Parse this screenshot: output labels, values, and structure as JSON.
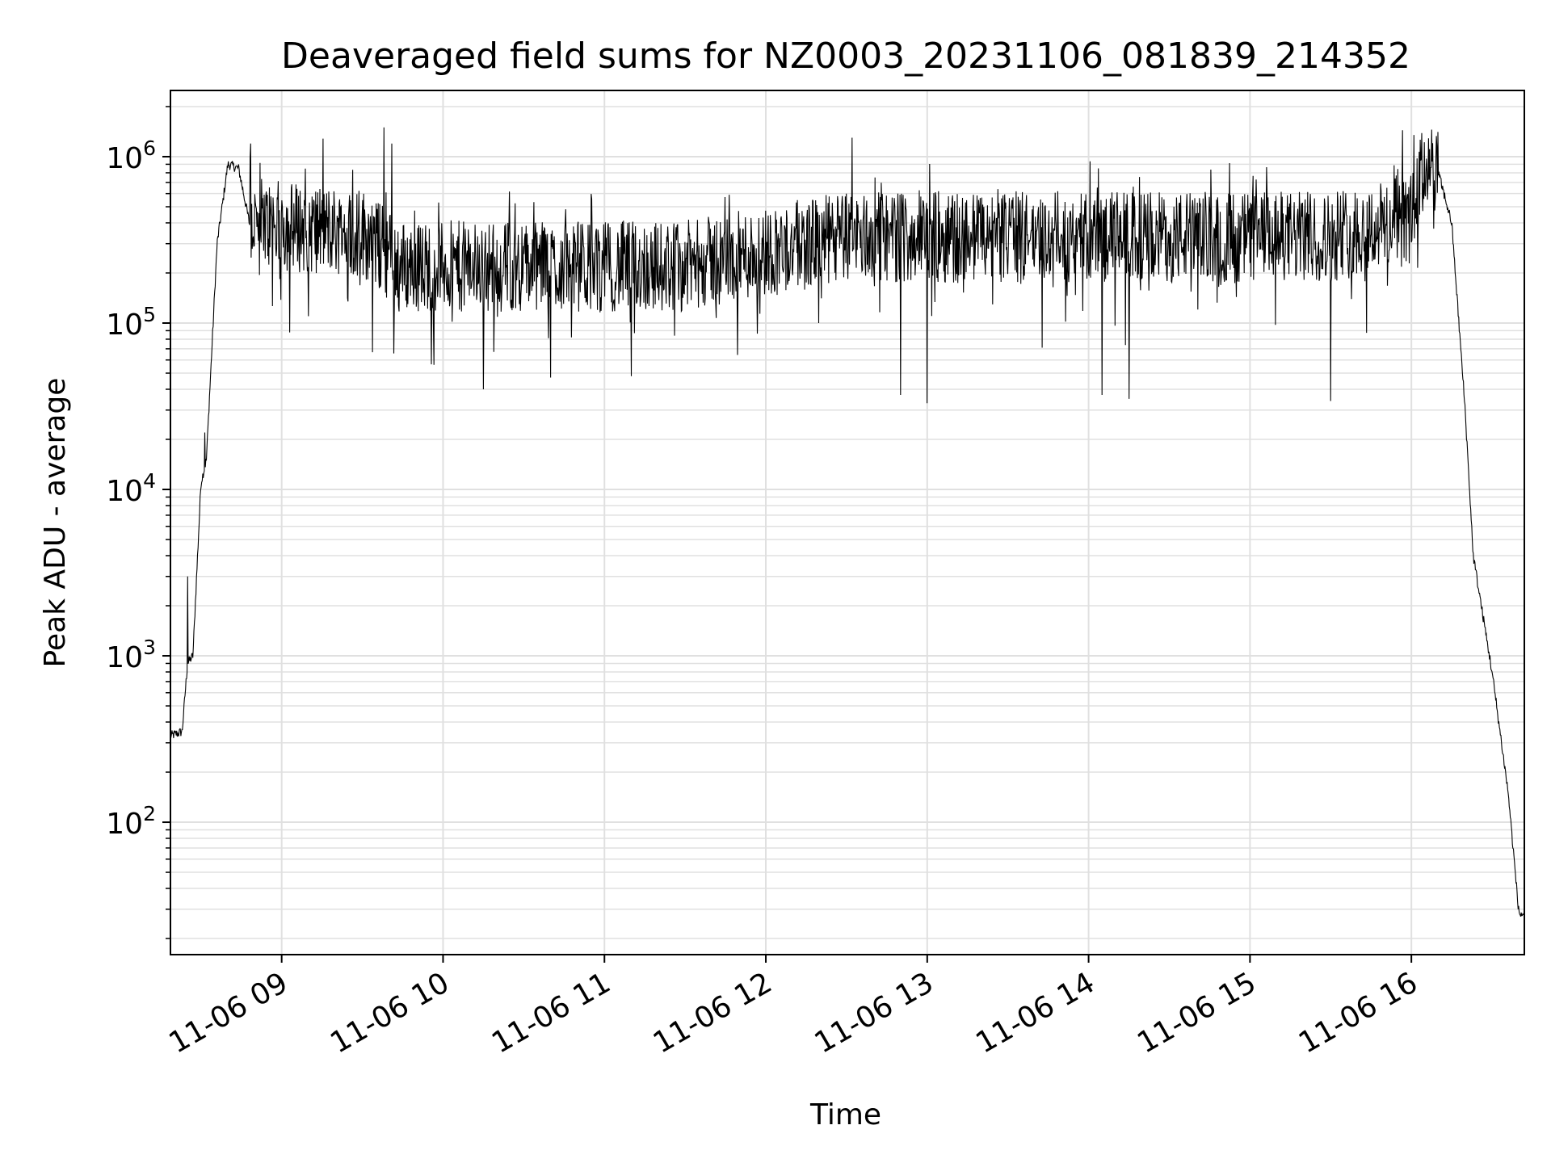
{
  "chart_data": {
    "type": "line",
    "title": "Deaveraged field sums for NZ0003_20231106_081839_214352",
    "xlabel": "Time",
    "ylabel": "Peak ADU - average",
    "yscale": "log",
    "ylim": [
      16,
      2500000
    ],
    "xlim": [
      "2023-11-06 08:18:39",
      "2023-11-06 16:42:00"
    ],
    "grid": true,
    "line_color": "#000000",
    "grid_color": "#e0e0e0",
    "x_ticks": [
      "11-06 09",
      "11-06 10",
      "11-06 11",
      "11-06 12",
      "11-06 13",
      "11-06 14",
      "11-06 15",
      "11-06 16"
    ],
    "x_tick_times": [
      "2023-11-06 09:00",
      "2023-11-06 10:00",
      "2023-11-06 11:00",
      "2023-11-06 12:00",
      "2023-11-06 13:00",
      "2023-11-06 14:00",
      "2023-11-06 15:00",
      "2023-11-06 16:00"
    ],
    "y_ticks": [
      {
        "value": 100,
        "base": "10",
        "exp": "2"
      },
      {
        "value": 1000,
        "base": "10",
        "exp": "3"
      },
      {
        "value": 10000,
        "base": "10",
        "exp": "4"
      },
      {
        "value": 100000,
        "base": "10",
        "exp": "5"
      },
      {
        "value": 1000000,
        "base": "10",
        "exp": "6"
      }
    ],
    "series": [
      {
        "envelope": [
          {
            "t": "2023-11-06 08:18:39",
            "y": 330
          },
          {
            "t": "2023-11-06 08:23:00",
            "y": 350
          },
          {
            "t": "2023-11-06 08:25:00",
            "y": 900
          },
          {
            "t": "2023-11-06 08:27:00",
            "y": 1000
          },
          {
            "t": "2023-11-06 08:30:00",
            "y": 11000
          },
          {
            "t": "2023-11-06 08:32:00",
            "y": 15000
          },
          {
            "t": "2023-11-06 08:36:00",
            "y": 300000
          },
          {
            "t": "2023-11-06 08:40:00",
            "y": 900000
          },
          {
            "t": "2023-11-06 08:44:00",
            "y": 850000
          },
          {
            "t": "2023-11-06 08:48:00",
            "y": 400000
          },
          {
            "t": "2023-11-06 09:30:00",
            "y": 350000
          },
          {
            "t": "2023-11-06 09:45:00",
            "y": 220000
          },
          {
            "t": "2023-11-06 11:30:00",
            "y": 220000
          },
          {
            "t": "2023-11-06 12:30:00",
            "y": 330000
          },
          {
            "t": "2023-11-06 15:30:00",
            "y": 330000
          },
          {
            "t": "2023-11-06 16:00:00",
            "y": 420000
          },
          {
            "t": "2023-11-06 16:05:00",
            "y": 900000
          },
          {
            "t": "2023-11-06 16:10:00",
            "y": 800000
          },
          {
            "t": "2023-11-06 16:15:00",
            "y": 400000
          },
          {
            "t": "2023-11-06 16:20:00",
            "y": 30000
          },
          {
            "t": "2023-11-06 16:23:00",
            "y": 4000
          },
          {
            "t": "2023-11-06 16:26:00",
            "y": 2000
          },
          {
            "t": "2023-11-06 16:30:00",
            "y": 800
          },
          {
            "t": "2023-11-06 16:36:00",
            "y": 150
          },
          {
            "t": "2023-11-06 16:40:00",
            "y": 28
          },
          {
            "t": "2023-11-06 16:42:00",
            "y": 28
          }
        ],
        "peaks": [
          {
            "t": "2023-11-06 08:25:00",
            "y": 3000
          },
          {
            "t": "2023-11-06 08:31:30",
            "y": 22000
          },
          {
            "t": "2023-11-06 08:48:30",
            "y": 1200000
          },
          {
            "t": "2023-11-06 09:38:00",
            "y": 1500000
          },
          {
            "t": "2023-11-06 09:41:00",
            "y": 1200000
          },
          {
            "t": "2023-11-06 12:32:00",
            "y": 1300000
          },
          {
            "t": "2023-11-06 16:01:00",
            "y": 1350000
          }
        ],
        "dips": [
          {
            "t": "2023-11-06 09:10:00",
            "y": 110000
          },
          {
            "t": "2023-11-06 10:15:00",
            "y": 40000
          },
          {
            "t": "2023-11-06 10:40:00",
            "y": 47000
          },
          {
            "t": "2023-11-06 11:10:00",
            "y": 48000
          },
          {
            "t": "2023-11-06 12:50:00",
            "y": 37000
          },
          {
            "t": "2023-11-06 13:00:00",
            "y": 33000
          },
          {
            "t": "2023-11-06 14:05:00",
            "y": 37000
          },
          {
            "t": "2023-11-06 14:15:00",
            "y": 35000
          },
          {
            "t": "2023-11-06 15:30:00",
            "y": 34000
          }
        ]
      }
    ]
  }
}
